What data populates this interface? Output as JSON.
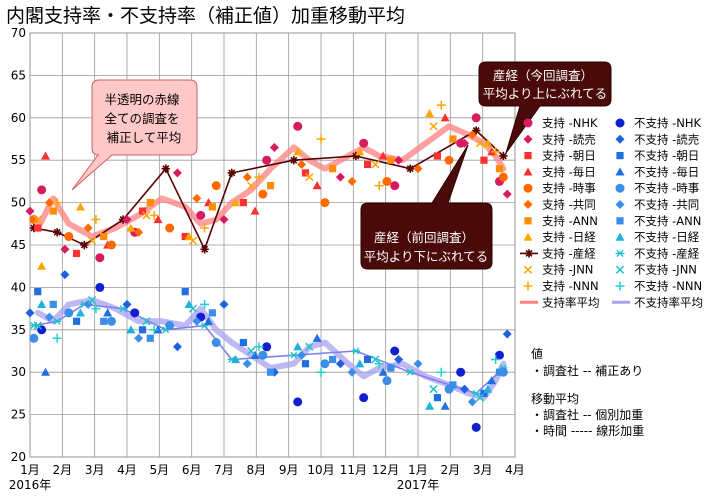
{
  "chart_data": {
    "type": "scatter",
    "title": "内閣支持率・不支持率（補正値）加重移動平均",
    "x_ticks": [
      "1月",
      "2月",
      "3月",
      "4月",
      "5月",
      "6月",
      "7月",
      "8月",
      "9月",
      "10月",
      "11月",
      "12月",
      "1月",
      "2月",
      "3月",
      "4月"
    ],
    "year_labels": [
      "2016年",
      "2017年"
    ],
    "y_ticks": [
      "20",
      "25",
      "30",
      "35",
      "40",
      "45",
      "50",
      "55",
      "60",
      "65",
      "70"
    ],
    "ylim": [
      20,
      70
    ],
    "xlim": [
      2016.0,
      2017.25
    ],
    "grid": true,
    "legend_position": "right",
    "colors": {
      "support": "#ff4d4d",
      "nonsupport": "#1f3fe0",
      "support_avg": "#ff8080",
      "nonsupport_avg": "#a8a0f0",
      "sankei": "#5a0000"
    },
    "legend": [
      {
        "label": "支持 -NHK",
        "color": "#d81b60",
        "marker": "circle"
      },
      {
        "label": "支持 -読売",
        "color": "#d81b60",
        "marker": "diamond"
      },
      {
        "label": "支持 -朝日",
        "color": "#ff3030",
        "marker": "square"
      },
      {
        "label": "支持 -毎日",
        "color": "#ff3030",
        "marker": "triangle"
      },
      {
        "label": "支持 -時事",
        "color": "#ff6a00",
        "marker": "circle"
      },
      {
        "label": "支持 -共同",
        "color": "#ff6a00",
        "marker": "diamond"
      },
      {
        "label": "支持 -ANN",
        "color": "#ff8c00",
        "marker": "square"
      },
      {
        "label": "支持 -日経",
        "color": "#ffa500",
        "marker": "triangle"
      },
      {
        "label": "支持 -産経",
        "color": "#5a0000",
        "marker": "star"
      },
      {
        "label": "支持 -JNN",
        "color": "#ffa500",
        "marker": "x"
      },
      {
        "label": "支持 -NNN",
        "color": "#ffa500",
        "marker": "plus"
      },
      {
        "label": "支持率平均",
        "color": "#ff8080",
        "marker": "line"
      },
      {
        "label": "不支持 -NHK",
        "color": "#1020d0",
        "marker": "circle"
      },
      {
        "label": "不支持 -読売",
        "color": "#1f5fe0",
        "marker": "diamond"
      },
      {
        "label": "不支持 -朝日",
        "color": "#1f6fe0",
        "marker": "square"
      },
      {
        "label": "不支持 -毎日",
        "color": "#1f6fe0",
        "marker": "triangle"
      },
      {
        "label": "不支持 -時事",
        "color": "#3b8ee8",
        "marker": "circle"
      },
      {
        "label": "不支持 -共同",
        "color": "#3b8ee8",
        "marker": "diamond"
      },
      {
        "label": "不支持 -ANN",
        "color": "#3b8ee8",
        "marker": "square"
      },
      {
        "label": "不支持 -日経",
        "color": "#20b0e0",
        "marker": "triangle"
      },
      {
        "label": "不支持 -産経",
        "color": "#20c0d0",
        "marker": "asterisk"
      },
      {
        "label": "不支持 -JNN",
        "color": "#20c0d0",
        "marker": "x"
      },
      {
        "label": "不支持 -NNN",
        "color": "#20d0d0",
        "marker": "plus"
      },
      {
        "label": "不支持率平均",
        "color": "#a8a0f0",
        "marker": "line"
      }
    ],
    "series": [
      {
        "name": "支持率平均",
        "kind": "avg",
        "color": "#ff8080",
        "x": [
          2016.02,
          2016.06,
          2016.1,
          2016.16,
          2016.22,
          2016.28,
          2016.34,
          2016.4,
          2016.44,
          2016.48,
          2016.52,
          2016.57,
          2016.62,
          2016.68,
          2016.72,
          2016.76,
          2016.82,
          2016.86,
          2016.9,
          2016.96,
          2017.02,
          2017.08,
          2017.13,
          2017.17,
          2017.2,
          2017.22
        ],
        "y": [
          47,
          50.5,
          47.5,
          46,
          47,
          48.5,
          50.5,
          49.5,
          47.5,
          48,
          50,
          51.5,
          54,
          56.5,
          55,
          54,
          55.5,
          56.5,
          55.5,
          55,
          57,
          59,
          58,
          57,
          55.5,
          54
        ]
      },
      {
        "name": "不支持率平均",
        "kind": "avg",
        "color": "#a8a0f0",
        "x": [
          2016.02,
          2016.06,
          2016.1,
          2016.16,
          2016.22,
          2016.28,
          2016.34,
          2016.4,
          2016.44,
          2016.48,
          2016.52,
          2016.57,
          2016.62,
          2016.68,
          2016.72,
          2016.76,
          2016.82,
          2016.86,
          2016.9,
          2016.96,
          2017.02,
          2017.08,
          2017.13,
          2017.17,
          2017.2,
          2017.22
        ],
        "y": [
          37,
          36,
          38,
          38.5,
          37.5,
          36,
          36,
          35.5,
          37.5,
          35,
          33.5,
          32,
          30.5,
          31,
          33,
          33.5,
          31,
          29.5,
          30.5,
          31,
          29.5,
          28.5,
          27.5,
          27,
          29,
          31
        ]
      },
      {
        "name": "支持 -産経",
        "kind": "line",
        "color": "#5a0000",
        "x": [
          2016.01,
          2016.07,
          2016.14,
          2016.24,
          2016.35,
          2016.45,
          2016.52,
          2016.68,
          2016.84,
          2016.98,
          2017.15,
          2017.22
        ],
        "y": [
          47,
          46.5,
          45,
          48,
          54,
          44.5,
          53.5,
          55,
          55.5,
          54,
          58.5,
          55.5
        ]
      },
      {
        "name": "不支持 -産経",
        "kind": "line",
        "color": "#8080f0",
        "x": [
          2016.01,
          2016.07,
          2016.14,
          2016.24,
          2016.35,
          2016.45,
          2016.52,
          2016.68,
          2016.84,
          2016.98,
          2017.15,
          2017.22
        ],
        "y": [
          35.5,
          36,
          38,
          37.5,
          35,
          35.5,
          31.5,
          32,
          32.5,
          30,
          27.5,
          30.5
        ]
      },
      {
        "name": "支持 -NHK",
        "kind": "points",
        "color": "#d81b60",
        "marker": "circle",
        "x": [
          2016.03,
          2016.18,
          2016.27,
          2016.44,
          2016.61,
          2016.69,
          2016.86,
          2016.94,
          2017.11,
          2017.15,
          2017.21
        ],
        "y": [
          51.5,
          43.5,
          46.5,
          48.5,
          55,
          59,
          57,
          52,
          57,
          60,
          52.5
        ]
      },
      {
        "name": "支持 -読売",
        "kind": "points",
        "color": "#d81b60",
        "marker": "diamond",
        "x": [
          2016.0,
          2016.09,
          2016.25,
          2016.38,
          2016.5,
          2016.63,
          2016.8,
          2016.95,
          2017.12,
          2017.23
        ],
        "y": [
          49,
          44.5,
          48,
          53.5,
          48,
          56.5,
          53,
          55,
          57,
          51
        ]
      },
      {
        "name": "支持 -朝日",
        "kind": "points",
        "color": "#ff3030",
        "marker": "square",
        "x": [
          2016.02,
          2016.12,
          2016.29,
          2016.4,
          2016.55,
          2016.71,
          2016.87,
          2017.05,
          2017.17
        ],
        "y": [
          47,
          44,
          49,
          46,
          50,
          53.5,
          54.5,
          55.5,
          55
        ]
      },
      {
        "name": "支持 -毎日",
        "kind": "points",
        "color": "#ff3030",
        "marker": "triangle",
        "x": [
          2016.04,
          2016.2,
          2016.33,
          2016.46,
          2016.58,
          2016.74,
          2016.91,
          2017.07,
          2017.19
        ],
        "y": [
          55.5,
          45,
          48,
          50,
          49,
          52,
          55.5,
          60,
          56
        ]
      },
      {
        "name": "支持 -時事",
        "kind": "points",
        "color": "#ff6a00",
        "marker": "circle",
        "x": [
          2016.01,
          2016.1,
          2016.21,
          2016.36,
          2016.48,
          2016.6,
          2016.76,
          2016.92,
          2017.08,
          2017.22
        ],
        "y": [
          48,
          46,
          45,
          47,
          52,
          51,
          50,
          52.5,
          55,
          53
        ]
      },
      {
        "name": "支持 -共同",
        "kind": "points",
        "color": "#ff6a00",
        "marker": "diamond",
        "x": [
          2016.05,
          2016.15,
          2016.28,
          2016.43,
          2016.56,
          2016.7,
          2016.83,
          2017.0,
          2017.14
        ],
        "y": [
          50,
          47,
          46.5,
          50.5,
          53,
          54.5,
          52.5,
          54,
          58
        ]
      },
      {
        "name": "支持 -ANN",
        "kind": "points",
        "color": "#ff8c00",
        "marker": "square",
        "x": [
          2016.06,
          2016.19,
          2016.31,
          2016.47,
          2016.62,
          2016.78,
          2016.93,
          2017.09,
          2017.21
        ],
        "y": [
          49,
          46,
          50,
          49.5,
          52,
          54,
          55,
          57.5,
          54
        ]
      },
      {
        "name": "支持 -日経",
        "kind": "points",
        "color": "#ffa500",
        "marker": "triangle",
        "x": [
          2016.03,
          2016.13,
          2016.26,
          2016.41,
          2016.53,
          2016.69,
          2016.85,
          2017.03,
          2017.18
        ],
        "y": [
          42.5,
          49.5,
          47,
          46,
          50,
          56,
          56,
          60.5,
          57
        ]
      },
      {
        "name": "支持 -JNN",
        "kind": "points",
        "color": "#ffa500",
        "marker": "x",
        "x": [
          2016.02,
          2016.16,
          2016.3,
          2016.42,
          2016.57,
          2016.72,
          2016.89,
          2017.04,
          2017.16
        ],
        "y": [
          48,
          45.5,
          48.5,
          45.5,
          52,
          53,
          54.5,
          59,
          57
        ]
      },
      {
        "name": "支持 -NNN",
        "kind": "points",
        "color": "#ffa500",
        "marker": "plus",
        "x": [
          2016.07,
          2016.17,
          2016.32,
          2016.45,
          2016.59,
          2016.75,
          2016.9,
          2017.06,
          2017.2
        ],
        "y": [
          50,
          48,
          48.5,
          47,
          53,
          57.5,
          52,
          61.5,
          56
        ]
      },
      {
        "name": "不支持 -NHK",
        "kind": "points",
        "color": "#1020d0",
        "marker": "circle",
        "x": [
          2016.03,
          2016.18,
          2016.27,
          2016.44,
          2016.61,
          2016.69,
          2016.86,
          2016.94,
          2017.11,
          2017.15,
          2017.21
        ],
        "y": [
          35,
          40,
          37,
          36.5,
          33,
          26.5,
          27,
          32.5,
          30,
          23.5,
          32
        ]
      },
      {
        "name": "不支持 -読売",
        "kind": "points",
        "color": "#1f5fe0",
        "marker": "diamond",
        "x": [
          2016.0,
          2016.09,
          2016.25,
          2016.38,
          2016.5,
          2016.63,
          2016.8,
          2016.95,
          2017.12,
          2017.23
        ],
        "y": [
          37,
          41.5,
          38,
          33,
          38,
          30,
          31,
          31.5,
          28,
          34.5
        ]
      },
      {
        "name": "不支持 -朝日",
        "kind": "points",
        "color": "#1f6fe0",
        "marker": "square",
        "x": [
          2016.02,
          2016.12,
          2016.29,
          2016.4,
          2016.55,
          2016.71,
          2016.87,
          2017.05,
          2017.17
        ],
        "y": [
          39.5,
          36,
          35,
          39.5,
          33.5,
          31,
          31.5,
          27,
          27.5
        ]
      },
      {
        "name": "不支持 -毎日",
        "kind": "points",
        "color": "#1f6fe0",
        "marker": "triangle",
        "x": [
          2016.04,
          2016.2,
          2016.33,
          2016.46,
          2016.58,
          2016.74,
          2016.91,
          2017.07,
          2017.19
        ],
        "y": [
          30,
          37,
          35,
          36,
          32,
          34,
          30,
          26,
          29
        ]
      },
      {
        "name": "不支持 -時事",
        "kind": "points",
        "color": "#3b8ee8",
        "marker": "circle",
        "x": [
          2016.01,
          2016.1,
          2016.21,
          2016.36,
          2016.48,
          2016.6,
          2016.76,
          2016.92,
          2017.08,
          2017.22
        ],
        "y": [
          34,
          37,
          36,
          35.5,
          33.5,
          32,
          31,
          29,
          28,
          30
        ]
      },
      {
        "name": "不支持 -共同",
        "kind": "points",
        "color": "#3b8ee8",
        "marker": "diamond",
        "x": [
          2016.05,
          2016.15,
          2016.28,
          2016.43,
          2016.56,
          2016.7,
          2016.83,
          2017.0,
          2017.14
        ],
        "y": [
          36.5,
          38,
          34,
          36,
          31,
          32,
          30,
          31,
          26.5
        ]
      },
      {
        "name": "不支持 -ANN",
        "kind": "points",
        "color": "#3b8ee8",
        "marker": "square",
        "x": [
          2016.06,
          2016.19,
          2016.31,
          2016.47,
          2016.62,
          2016.78,
          2016.93,
          2017.09,
          2017.21
        ],
        "y": [
          38,
          36,
          34,
          37,
          30,
          31.5,
          30.5,
          28.5,
          30
        ]
      },
      {
        "name": "不支持 -日経",
        "kind": "points",
        "color": "#20b0e0",
        "marker": "triangle",
        "x": [
          2016.03,
          2016.13,
          2016.26,
          2016.41,
          2016.53,
          2016.69,
          2016.85,
          2017.03,
          2017.18
        ],
        "y": [
          38,
          37,
          35,
          38,
          31.5,
          33,
          31,
          26,
          28
        ]
      },
      {
        "name": "不支持 -JNN",
        "kind": "points",
        "color": "#20c0d0",
        "marker": "x",
        "x": [
          2016.02,
          2016.16,
          2016.3,
          2016.42,
          2016.57,
          2016.72,
          2016.89,
          2017.04,
          2017.16
        ],
        "y": [
          35.5,
          38.5,
          36,
          37.5,
          32.5,
          33,
          31.5,
          28,
          27
        ]
      },
      {
        "name": "不支持 -NNN",
        "kind": "points",
        "color": "#20d0d0",
        "marker": "plus",
        "x": [
          2016.07,
          2016.17,
          2016.32,
          2016.45,
          2016.59,
          2016.75,
          2016.9,
          2017.06,
          2017.2
        ],
        "y": [
          34,
          37.5,
          35,
          38,
          33,
          30,
          31,
          30,
          31.5
        ]
      }
    ],
    "annotations": [
      {
        "text": "半透明の赤線\n全ての調査を\n補正して平均",
        "style": "pink-callout"
      },
      {
        "text": "産経（今回調査）\n平均より上にぶれてる",
        "style": "dark-callout"
      },
      {
        "text": "産経（前回調査）\n平均より下にぶれてる",
        "style": "dark-callout"
      }
    ],
    "notes": {
      "value_heading": "値",
      "value_line": "・調査社 -- 補正あり",
      "avg_heading": "移動平均",
      "avg_line1": "・調査社 -- 個別加重",
      "avg_line2": "・時間 ----- 線形加重"
    }
  }
}
